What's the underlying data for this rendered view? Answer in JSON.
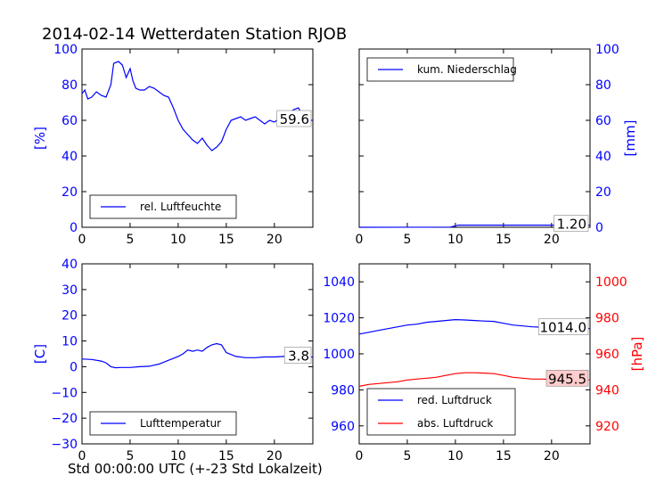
{
  "title": "2014-02-14 Wetterdaten Station RJOB",
  "xlabel": "Std 00:00:00 UTC (+-23 Std Lokalzeit)",
  "colors": {
    "blue": "#0000ff",
    "red": "#ff0000",
    "annot_bg": "#ffcccc"
  },
  "chart_data": [
    {
      "id": "humidity",
      "type": "line",
      "ylabel": "[%]",
      "xlim": [
        0,
        24
      ],
      "ylim": [
        0,
        100
      ],
      "xticks": [
        0,
        5,
        10,
        15,
        20
      ],
      "yticks": [
        0,
        20,
        40,
        60,
        80,
        100
      ],
      "legend": "bottom-left",
      "annotation": "59.6",
      "series": [
        {
          "name": "rel. Luftfeuchte",
          "color": "#0000ff",
          "x": [
            0,
            0.3,
            0.6,
            1,
            1.5,
            2,
            2.5,
            3,
            3.3,
            3.8,
            4.2,
            4.6,
            5,
            5.3,
            5.6,
            6,
            6.5,
            7,
            7.5,
            8,
            8.5,
            9,
            9.5,
            10,
            10.5,
            11,
            11.5,
            12,
            12.5,
            13,
            13.5,
            14,
            14.5,
            15,
            15.5,
            16,
            16.5,
            17,
            17.5,
            18,
            18.5,
            19,
            19.5,
            20,
            20.5,
            21,
            21.5,
            22,
            22.5,
            23,
            23.5,
            24
          ],
          "y": [
            75,
            77,
            72,
            73,
            76,
            74,
            73,
            80,
            92,
            93,
            91,
            84,
            89,
            82,
            78,
            77,
            77,
            79,
            78,
            76,
            74,
            73,
            67,
            60,
            55,
            52,
            49,
            47,
            50,
            46,
            43,
            45,
            48,
            55,
            60,
            61,
            62,
            60,
            61,
            62,
            60,
            58,
            60,
            59,
            61,
            62,
            64,
            66,
            67,
            62,
            60,
            60
          ]
        }
      ]
    },
    {
      "id": "precip",
      "type": "line",
      "ylabel": "[mm]",
      "xlim": [
        0,
        24
      ],
      "ylim": [
        0,
        100
      ],
      "xticks": [
        0,
        5,
        10,
        15,
        20
      ],
      "yticks": [
        0,
        20,
        40,
        60,
        80,
        100
      ],
      "yaxis_side": "right",
      "legend": "top-left",
      "annotation": "1.20",
      "series": [
        {
          "name": "kum. Niederschlag",
          "color": "#0000ff",
          "x": [
            0,
            9.5,
            10,
            10.3,
            24
          ],
          "y": [
            0,
            0.1,
            0.8,
            1.2,
            1.2
          ]
        }
      ]
    },
    {
      "id": "temperature",
      "type": "line",
      "ylabel": "[C]",
      "xlim": [
        0,
        24
      ],
      "ylim": [
        -30,
        40
      ],
      "xticks": [
        0,
        5,
        10,
        15,
        20
      ],
      "yticks": [
        -30,
        -20,
        -10,
        0,
        10,
        20,
        30,
        40
      ],
      "legend": "bottom-left",
      "annotation": "3.8",
      "series": [
        {
          "name": "Lufttemperatur",
          "color": "#0000ff",
          "x": [
            0,
            1,
            2,
            2.5,
            3,
            3.5,
            4,
            5,
            6,
            7,
            8,
            9,
            10,
            10.5,
            11,
            11.5,
            12,
            12.5,
            13,
            13.5,
            14,
            14.5,
            15,
            16,
            17,
            18,
            19,
            20,
            21,
            22,
            23,
            24
          ],
          "y": [
            3,
            2.8,
            2.2,
            1.5,
            0,
            -0.4,
            -0.3,
            -0.3,
            0,
            0.2,
            1,
            2.5,
            4,
            5,
            6.5,
            6,
            6.5,
            6,
            7.5,
            8.5,
            9,
            8.5,
            5.5,
            4,
            3.5,
            3.5,
            3.8,
            3.8,
            4,
            3.6,
            3.7,
            3.8
          ]
        }
      ]
    },
    {
      "id": "pressure",
      "type": "line",
      "ylabel_right": "[hPa]",
      "xlim": [
        0,
        24
      ],
      "ylim": [
        950,
        1050
      ],
      "ylim_right": [
        910,
        1010
      ],
      "xticks": [
        0,
        5,
        10,
        15,
        20
      ],
      "yticks": [
        960,
        980,
        1000,
        1020,
        1040
      ],
      "yticks_right": [
        920,
        940,
        960,
        980,
        1000
      ],
      "legend": "bottom-left",
      "annotation": "1014.0",
      "annotation_right": "945.5",
      "series": [
        {
          "name": "red. Luftdruck",
          "color": "#0000ff",
          "axis": "left",
          "x": [
            0,
            1,
            2,
            3,
            4,
            5,
            6,
            7,
            8,
            9,
            10,
            11,
            12,
            13,
            14,
            15,
            16,
            17,
            18,
            19,
            20,
            21,
            22,
            23,
            24
          ],
          "y": [
            1011,
            1012,
            1013,
            1014,
            1015,
            1016,
            1016.5,
            1017.5,
            1018,
            1018.5,
            1019,
            1018.8,
            1018.5,
            1018.2,
            1018,
            1017,
            1016,
            1015.5,
            1015,
            1014.8,
            1014.5,
            1014.3,
            1014.2,
            1014.1,
            1014
          ]
        },
        {
          "name": "abs. Luftdruck",
          "color": "#ff0000",
          "axis": "right",
          "x": [
            0,
            1,
            2,
            3,
            4,
            5,
            6,
            7,
            8,
            9,
            10,
            11,
            12,
            13,
            14,
            15,
            16,
            17,
            18,
            19,
            20,
            21,
            22,
            23,
            24
          ],
          "y": [
            942,
            943,
            943.5,
            944,
            944.5,
            945.5,
            946,
            946.5,
            947,
            948,
            949,
            949.5,
            949.5,
            949.3,
            949,
            948,
            947,
            946.5,
            946,
            946,
            945.8,
            945.6,
            945.5,
            945.5,
            945.5
          ]
        }
      ]
    }
  ]
}
